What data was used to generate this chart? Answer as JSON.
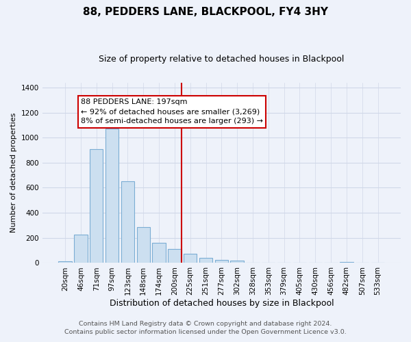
{
  "title": "88, PEDDERS LANE, BLACKPOOL, FY4 3HY",
  "subtitle": "Size of property relative to detached houses in Blackpool",
  "xlabel": "Distribution of detached houses by size in Blackpool",
  "ylabel": "Number of detached properties",
  "bar_labels": [
    "20sqm",
    "46sqm",
    "71sqm",
    "97sqm",
    "123sqm",
    "148sqm",
    "174sqm",
    "200sqm",
    "225sqm",
    "251sqm",
    "277sqm",
    "302sqm",
    "328sqm",
    "353sqm",
    "379sqm",
    "405sqm",
    "430sqm",
    "456sqm",
    "482sqm",
    "507sqm",
    "533sqm"
  ],
  "bar_values": [
    15,
    228,
    910,
    1070,
    650,
    288,
    160,
    110,
    72,
    40,
    25,
    20,
    5,
    0,
    0,
    0,
    0,
    0,
    10,
    0,
    0
  ],
  "bar_color": "#ccdff0",
  "bar_edge_color": "#7badd4",
  "vline_x": 7.45,
  "vline_color": "#cc0000",
  "annotation_title": "88 PEDDERS LANE: 197sqm",
  "annotation_line1": "← 92% of detached houses are smaller (3,269)",
  "annotation_line2": "8% of semi-detached houses are larger (293) →",
  "annotation_box_facecolor": "#ffffff",
  "annotation_box_edgecolor": "#cc0000",
  "ylim": [
    0,
    1440
  ],
  "yticks": [
    0,
    200,
    400,
    600,
    800,
    1000,
    1200,
    1400
  ],
  "footer1": "Contains HM Land Registry data © Crown copyright and database right 2024.",
  "footer2": "Contains public sector information licensed under the Open Government Licence v3.0.",
  "bg_color": "#eef2fa",
  "grid_color": "#d0d8e8",
  "title_fontsize": 11,
  "subtitle_fontsize": 9,
  "ylabel_fontsize": 8,
  "xlabel_fontsize": 9,
  "tick_fontsize": 7.5,
  "footer_fontsize": 6.8,
  "annot_fontsize": 8
}
